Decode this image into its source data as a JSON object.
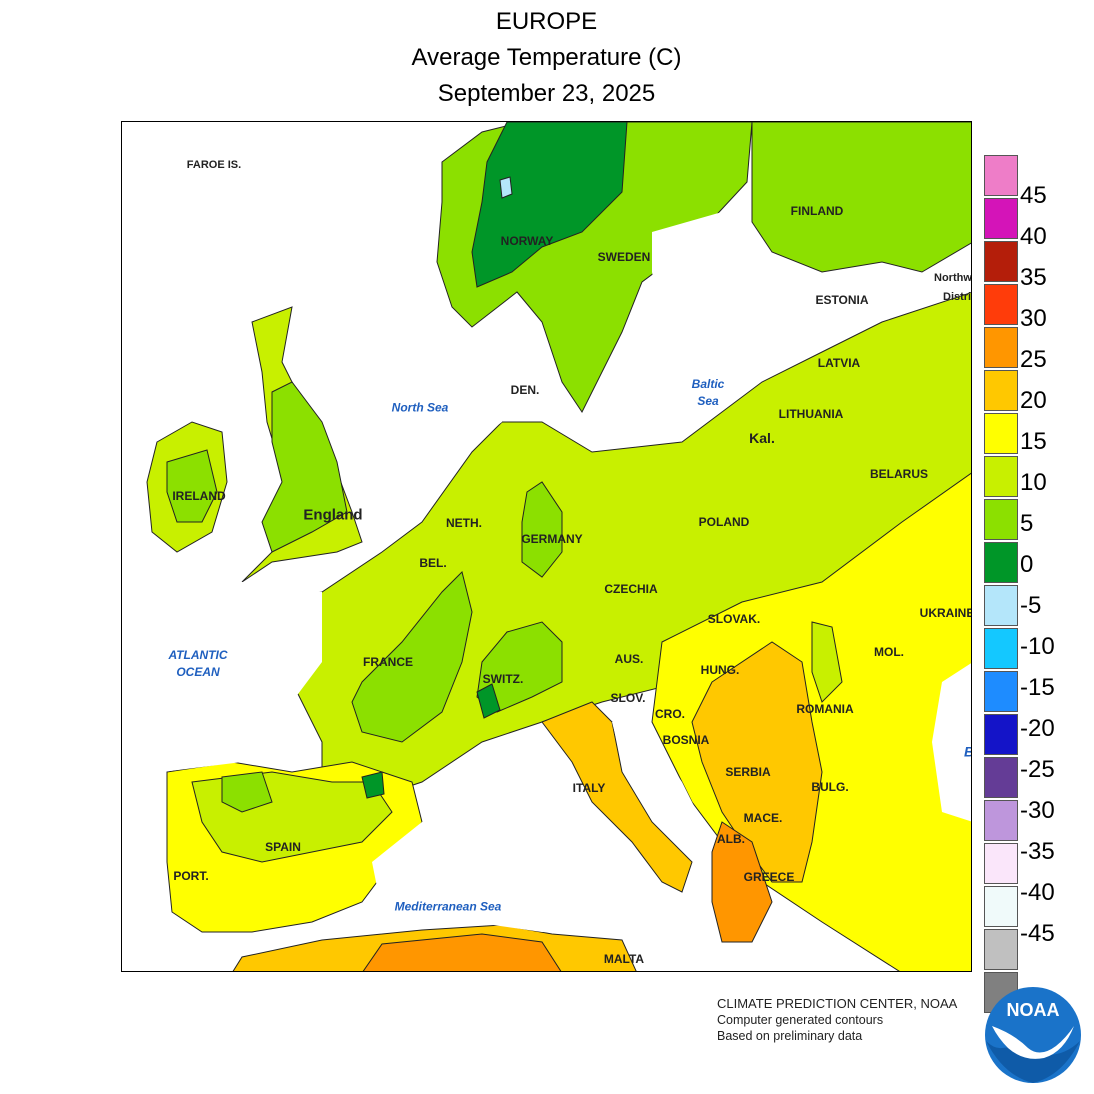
{
  "title": {
    "region": "EUROPE",
    "variable": "Average Temperature (C)",
    "date": "September 23, 2025"
  },
  "legend": {
    "colors": [
      "#ee7dc8",
      "#d414b8",
      "#b41e0a",
      "#ff3c0a",
      "#ff9600",
      "#ffc800",
      "#ffff00",
      "#c8f000",
      "#8ce000",
      "#009628",
      "#b4e6fa",
      "#14c8ff",
      "#1e8cff",
      "#1414c8",
      "#643c96",
      "#be96dc",
      "#fae6fa",
      "#f0fafa",
      "#c0c0c0",
      "#808080"
    ],
    "labels": [
      "45",
      "40",
      "35",
      "30",
      "25",
      "20",
      "15",
      "10",
      "5",
      "0",
      "-5",
      "-10",
      "-15",
      "-20",
      "-25",
      "-30",
      "-35",
      "-40",
      "-45"
    ]
  },
  "map": {
    "countries": [
      "FAROE IS.",
      "NORWAY",
      "SWEDEN",
      "FINLAND",
      "ESTONIA",
      "LATVIA",
      "LITHUANIA",
      "Kal.",
      "BELARUS",
      "DEN.",
      "IRELAND",
      "England",
      "NETH.",
      "BEL.",
      "GERMANY",
      "POLAND",
      "CZECHIA",
      "SLOVAK.",
      "UKRAINE",
      "FRANCE",
      "SWITZ.",
      "AUS.",
      "HUNG.",
      "MOL.",
      "ROMANIA",
      "SLOV.",
      "CRO.",
      "BOSNIA",
      "SERBIA",
      "BULG.",
      "ITALY",
      "MACE.",
      "ALB.",
      "GREECE",
      "SPAIN",
      "PORT.",
      "MALTA"
    ],
    "seas": {
      "north": "North Sea",
      "baltic": "Baltic Sea",
      "atlantic": "ATLANTIC OCEAN",
      "med": "Mediterranean Sea"
    },
    "cut_labels": [
      "Northw",
      "Distri",
      "B"
    ]
  },
  "credits": {
    "line1": "CLIMATE PREDICTION CENTER, NOAA",
    "line2": "Computer generated contours",
    "line3": "Based on preliminary data",
    "logo_text": "NOAA"
  }
}
